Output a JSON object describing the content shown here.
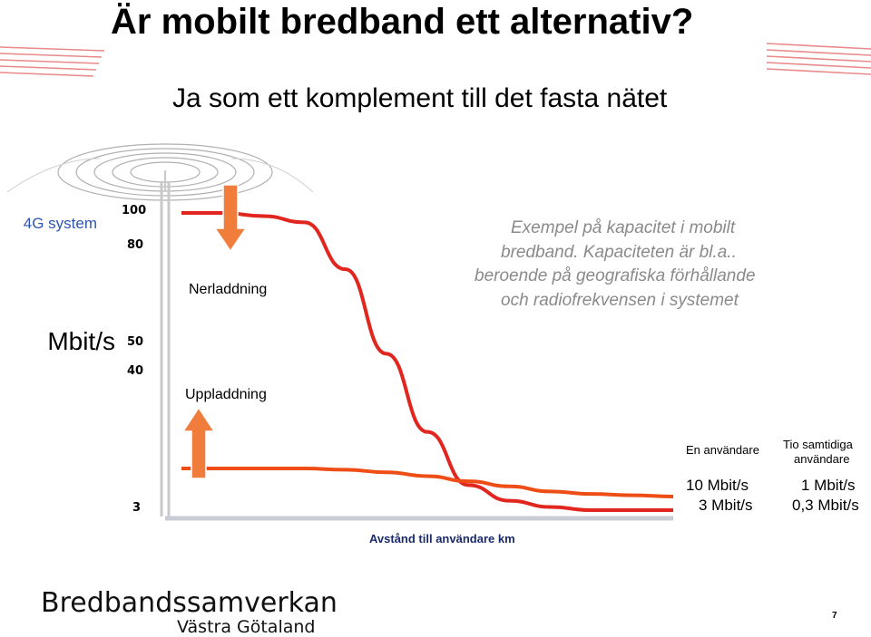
{
  "slide": {
    "title": "Är mobilt bredband ett alternativ?",
    "subtitle": "Ja som ett komplement till det fasta nätet",
    "system_label": "4G system",
    "unit_label": "Mbit/s",
    "note_lines": [
      "Exempel på kapacitet i mobilt",
      "bredband. Kapaciteten är bl.a..",
      "beroende på geografiska förhållande",
      "och radiofrekvensen i systemet"
    ],
    "download_label": "Nerladdning",
    "upload_label": "Uppladdning",
    "one_user": {
      "header": "En användare",
      "down": "10 Mbit/s",
      "up": "3 Mbit/s"
    },
    "ten_users": {
      "header_line1": "Tio samtidiga",
      "header_line2": "användare",
      "down": "1 Mbit/s",
      "up": "0,3 Mbit/s"
    },
    "brand_name": "Bredbandssamverkan",
    "brand_sub": "Västra Götaland",
    "page_number": "7",
    "colors": {
      "download_line": "#e0261e",
      "upload_line": "#ee4d16",
      "arrow_fill": "#f07d3c",
      "arrow_stroke": "#ffffff",
      "tower": "#c9c9c9",
      "axis_x": "#c9ccd4",
      "waves": "#b0b0b0",
      "note_text": "#8a8a8a",
      "stripes": "#e8898a"
    }
  },
  "chart_data": {
    "type": "line",
    "xlabel": "Avstånd till användare km",
    "ylabel": "Mbit/s",
    "y_ticks": [
      "100",
      "80",
      "50",
      "40",
      "3"
    ],
    "series": [
      {
        "name": "Nerladdning",
        "values": [
          100,
          100,
          99,
          97,
          82,
          55,
          30,
          13,
          8,
          6,
          5,
          5,
          5
        ]
      },
      {
        "name": "Uppladdning",
        "values": [
          3,
          3,
          3,
          3,
          2.9,
          2.7,
          2.4,
          2.0,
          1.6,
          1.2,
          1.0,
          0.9,
          0.8
        ]
      }
    ]
  }
}
